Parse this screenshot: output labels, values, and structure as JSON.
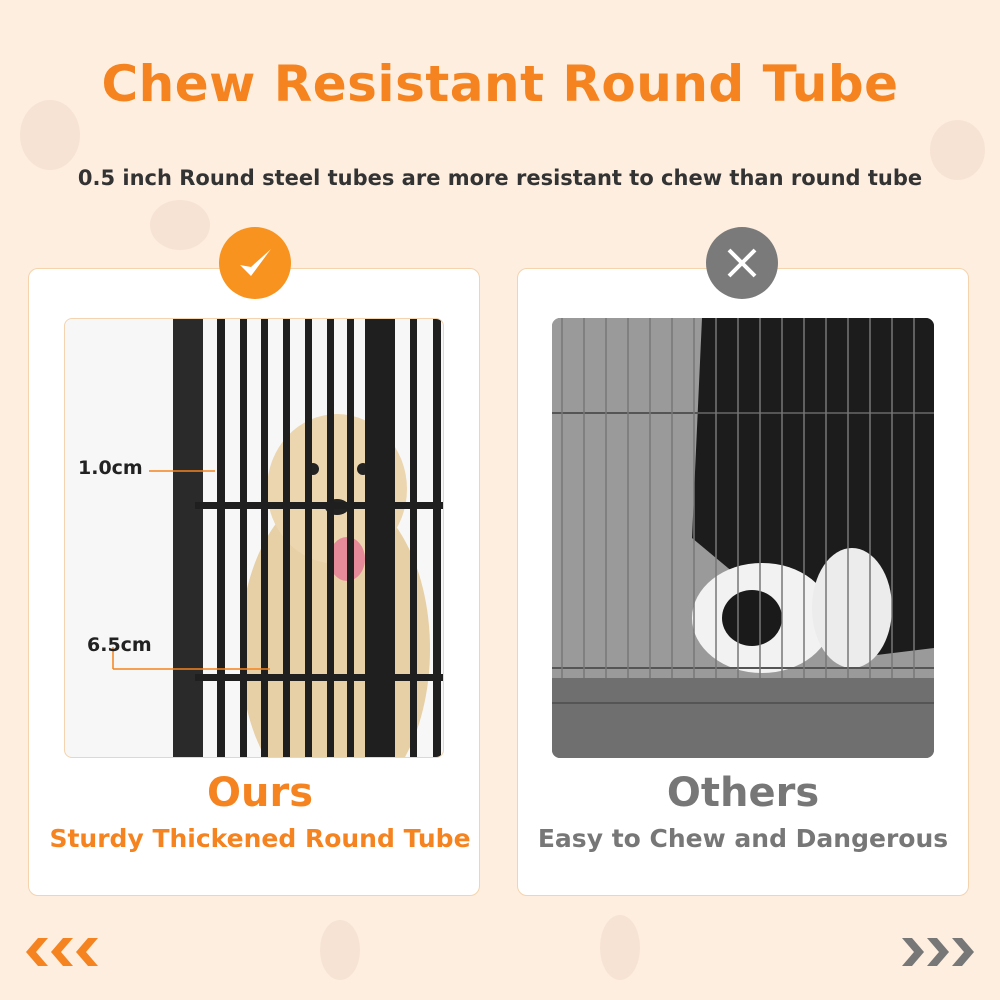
{
  "colors": {
    "accent": "#f5831f",
    "badge_ok": "#f7931e",
    "badge_bad": "#7a7a7a",
    "others": "#777777",
    "background": "#fdeee0"
  },
  "header": {
    "title": "Chew Resistant Round Tube",
    "subtitle": "0.5 inch Round steel tubes are more resistant to chew than round tube"
  },
  "ours": {
    "icon": "checkmark-icon",
    "measure_top": "1.0cm",
    "measure_bottom": "6.5cm",
    "title": "Ours",
    "caption": "Sturdy Thickened Round Tube"
  },
  "others": {
    "icon": "x-icon",
    "title": "Others",
    "caption": "Easy to Chew and Dangerous"
  },
  "nav": {
    "prev_icon": "triple-chevron-left-icon",
    "next_icon": "triple-chevron-right-icon"
  }
}
